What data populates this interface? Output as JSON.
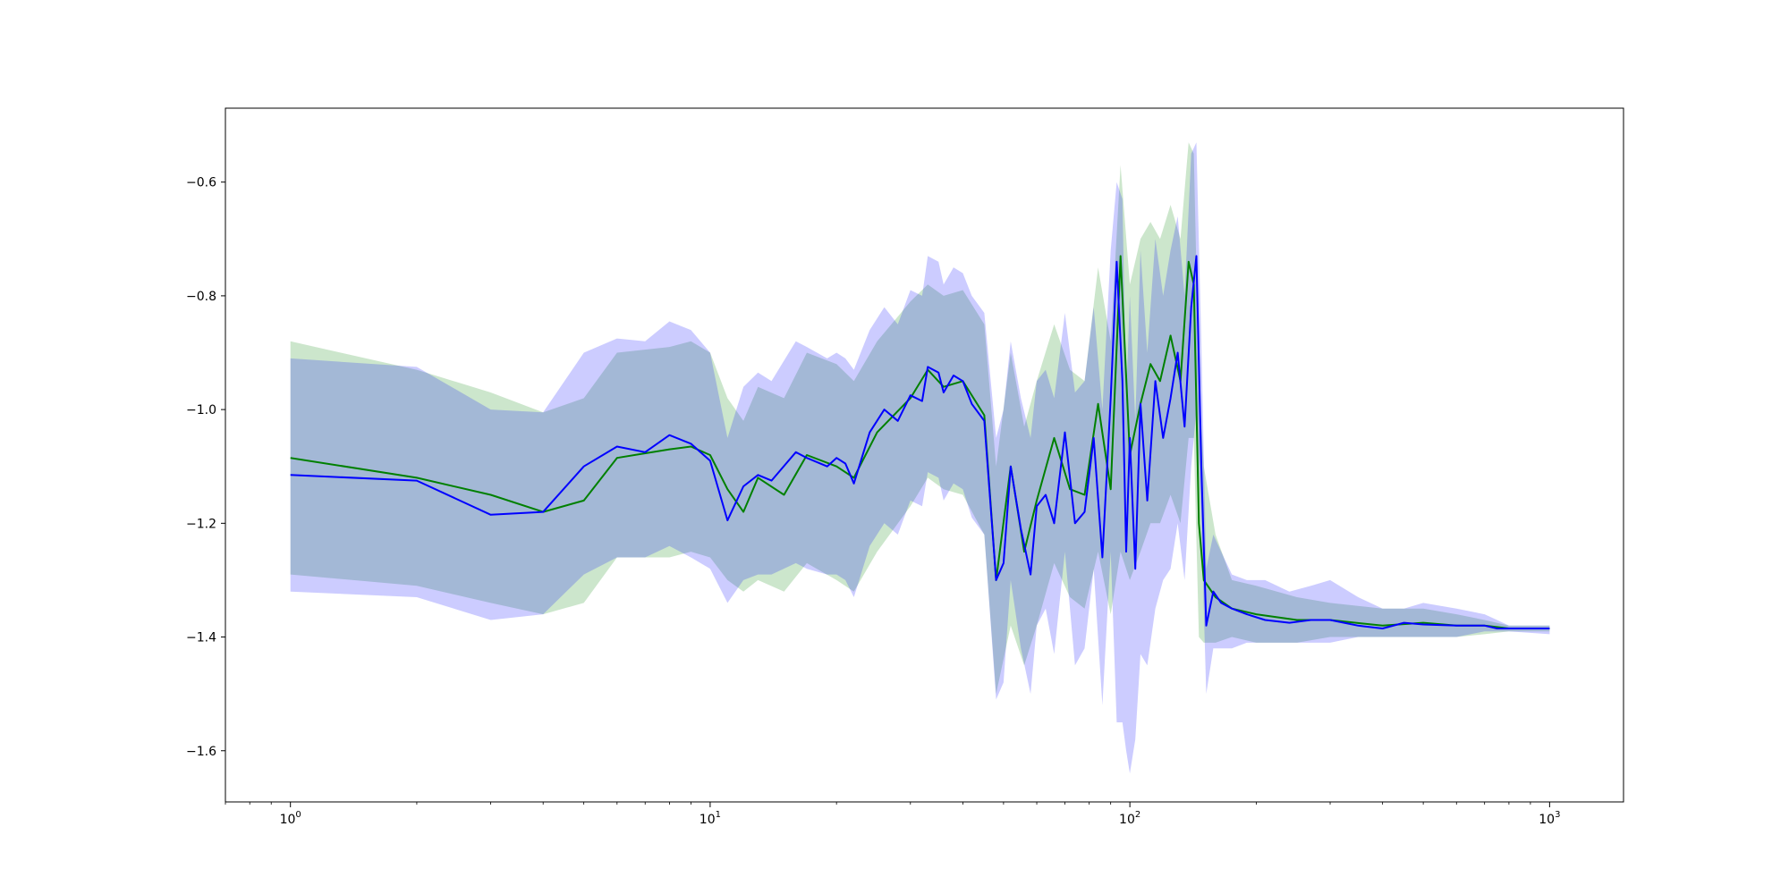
{
  "chart_data": {
    "type": "line",
    "title": "",
    "xlabel": "",
    "ylabel": "",
    "xscale": "log",
    "xlim": [
      0.7,
      1500
    ],
    "ylim": [
      -1.69,
      -0.47
    ],
    "grid": false,
    "legend": "none",
    "x_ticks": [
      {
        "base": "10",
        "exp": "0",
        "value": 1
      },
      {
        "base": "10",
        "exp": "1",
        "value": 10
      },
      {
        "base": "10",
        "exp": "2",
        "value": 100
      },
      {
        "base": "10",
        "exp": "3",
        "value": 1000
      }
    ],
    "y_ticks": [
      {
        "label": "−0.6",
        "value": -0.6
      },
      {
        "label": "−0.8",
        "value": -0.8
      },
      {
        "label": "−1.0",
        "value": -1.0
      },
      {
        "label": "−1.2",
        "value": -1.2
      },
      {
        "label": "−1.4",
        "value": -1.4
      },
      {
        "label": "−1.6",
        "value": -1.6
      }
    ],
    "colors": {
      "green_line": "#008000",
      "blue_line": "#0000ff",
      "green_band": "rgba(0,128,0,0.2)",
      "blue_band": "rgba(0,0,255,0.2)"
    },
    "series": [
      {
        "color": "green",
        "x": [
          1,
          2,
          3,
          4,
          5,
          6,
          8,
          9,
          10,
          11,
          12,
          13,
          15,
          17,
          20,
          22,
          25,
          30,
          33,
          36,
          40,
          45,
          48,
          52,
          56,
          60,
          66,
          72,
          78,
          84,
          90,
          95,
          100,
          106,
          112,
          118,
          125,
          132,
          138,
          142,
          146,
          150,
          160,
          175,
          200,
          250,
          300,
          400,
          500,
          600,
          700,
          800,
          1000
        ],
        "y": [
          -1.085,
          -1.12,
          -1.15,
          -1.18,
          -1.16,
          -1.085,
          -1.07,
          -1.065,
          -1.08,
          -1.14,
          -1.18,
          -1.12,
          -1.15,
          -1.08,
          -1.1,
          -1.12,
          -1.04,
          -0.98,
          -0.93,
          -0.96,
          -0.95,
          -1.01,
          -1.3,
          -1.1,
          -1.25,
          -1.16,
          -1.05,
          -1.14,
          -1.15,
          -0.99,
          -1.14,
          -0.73,
          -1.08,
          -0.99,
          -0.92,
          -0.95,
          -0.87,
          -0.95,
          -0.74,
          -0.78,
          -1.2,
          -1.3,
          -1.33,
          -1.35,
          -1.36,
          -1.37,
          -1.37,
          -1.38,
          -1.375,
          -1.38,
          -1.38,
          -1.385,
          -1.385
        ],
        "lower": [
          -1.29,
          -1.31,
          -1.34,
          -1.36,
          -1.34,
          -1.26,
          -1.26,
          -1.25,
          -1.26,
          -1.3,
          -1.32,
          -1.3,
          -1.32,
          -1.27,
          -1.3,
          -1.32,
          -1.25,
          -1.17,
          -1.12,
          -1.14,
          -1.15,
          -1.22,
          -1.5,
          -1.38,
          -1.45,
          -1.38,
          -1.27,
          -1.33,
          -1.35,
          -1.25,
          -1.36,
          -1.25,
          -1.3,
          -1.25,
          -1.2,
          -1.2,
          -1.15,
          -1.2,
          -1.05,
          -1.05,
          -1.4,
          -1.41,
          -1.41,
          -1.4,
          -1.41,
          -1.41,
          -1.4,
          -1.4,
          -1.4,
          -1.4,
          -1.395,
          -1.39,
          -1.39
        ],
        "upper": [
          -0.88,
          -0.93,
          -0.97,
          -1.005,
          -0.98,
          -0.9,
          -0.89,
          -0.88,
          -0.9,
          -0.98,
          -1.02,
          -0.96,
          -0.98,
          -0.9,
          -0.92,
          -0.95,
          -0.88,
          -0.81,
          -0.78,
          -0.8,
          -0.79,
          -0.85,
          -1.1,
          -0.9,
          -1.03,
          -0.95,
          -0.85,
          -0.93,
          -0.95,
          -0.75,
          -0.88,
          -0.57,
          -0.78,
          -0.7,
          -0.67,
          -0.7,
          -0.64,
          -0.7,
          -0.53,
          -0.55,
          -0.95,
          -1.1,
          -1.22,
          -1.3,
          -1.31,
          -1.33,
          -1.34,
          -1.35,
          -1.35,
          -1.36,
          -1.37,
          -1.38,
          -1.38
        ]
      },
      {
        "color": "blue",
        "x": [
          1,
          2,
          3,
          4,
          5,
          6,
          7,
          8,
          9,
          10,
          11,
          12,
          13,
          14,
          16,
          17,
          19,
          20,
          21,
          22,
          24,
          26,
          28,
          30,
          32,
          33,
          35,
          36,
          38,
          40,
          42,
          45,
          48,
          50,
          52,
          55,
          58,
          60,
          63,
          66,
          70,
          74,
          78,
          82,
          86,
          90,
          93,
          96,
          98,
          100,
          103,
          106,
          110,
          115,
          120,
          125,
          130,
          135,
          140,
          144,
          148,
          152,
          158,
          165,
          175,
          190,
          210,
          240,
          270,
          300,
          350,
          400,
          450,
          500,
          600,
          700,
          750,
          800,
          1000
        ],
        "y": [
          -1.115,
          -1.125,
          -1.185,
          -1.18,
          -1.1,
          -1.065,
          -1.075,
          -1.045,
          -1.06,
          -1.09,
          -1.195,
          -1.135,
          -1.115,
          -1.125,
          -1.075,
          -1.085,
          -1.1,
          -1.085,
          -1.095,
          -1.13,
          -1.04,
          -1.0,
          -1.02,
          -0.975,
          -0.985,
          -0.925,
          -0.935,
          -0.97,
          -0.94,
          -0.95,
          -0.99,
          -1.02,
          -1.3,
          -1.27,
          -1.1,
          -1.21,
          -1.29,
          -1.17,
          -1.15,
          -1.2,
          -1.04,
          -1.2,
          -1.18,
          -1.05,
          -1.26,
          -0.98,
          -0.74,
          -0.95,
          -1.25,
          -1.05,
          -1.28,
          -0.99,
          -1.16,
          -0.95,
          -1.05,
          -0.98,
          -0.9,
          -1.03,
          -0.82,
          -0.73,
          -1.1,
          -1.38,
          -1.32,
          -1.34,
          -1.35,
          -1.36,
          -1.37,
          -1.375,
          -1.37,
          -1.37,
          -1.38,
          -1.385,
          -1.375,
          -1.378,
          -1.38,
          -1.38,
          -1.385,
          -1.385,
          -1.385
        ],
        "lower": [
          -1.32,
          -1.33,
          -1.37,
          -1.36,
          -1.29,
          -1.26,
          -1.26,
          -1.24,
          -1.26,
          -1.28,
          -1.34,
          -1.3,
          -1.29,
          -1.29,
          -1.27,
          -1.28,
          -1.29,
          -1.29,
          -1.3,
          -1.33,
          -1.24,
          -1.2,
          -1.22,
          -1.16,
          -1.17,
          -1.11,
          -1.12,
          -1.16,
          -1.13,
          -1.14,
          -1.19,
          -1.22,
          -1.51,
          -1.48,
          -1.3,
          -1.42,
          -1.5,
          -1.38,
          -1.35,
          -1.43,
          -1.25,
          -1.45,
          -1.42,
          -1.28,
          -1.52,
          -1.25,
          -1.55,
          -1.55,
          -1.6,
          -1.64,
          -1.58,
          -1.43,
          -1.45,
          -1.35,
          -1.3,
          -1.28,
          -1.2,
          -1.3,
          -1.1,
          -1.0,
          -1.2,
          -1.5,
          -1.42,
          -1.42,
          -1.42,
          -1.41,
          -1.41,
          -1.41,
          -1.41,
          -1.41,
          -1.4,
          -1.4,
          -1.4,
          -1.4,
          -1.4,
          -1.39,
          -1.39,
          -1.39,
          -1.395
        ],
        "upper": [
          -0.91,
          -0.925,
          -1.0,
          -1.005,
          -0.9,
          -0.875,
          -0.88,
          -0.845,
          -0.86,
          -0.9,
          -1.05,
          -0.96,
          -0.935,
          -0.95,
          -0.88,
          -0.89,
          -0.91,
          -0.9,
          -0.91,
          -0.93,
          -0.86,
          -0.82,
          -0.85,
          -0.79,
          -0.8,
          -0.73,
          -0.74,
          -0.78,
          -0.75,
          -0.76,
          -0.8,
          -0.83,
          -1.05,
          -1.0,
          -0.88,
          -0.98,
          -1.05,
          -0.95,
          -0.93,
          -0.98,
          -0.83,
          -0.97,
          -0.95,
          -0.82,
          -1.0,
          -0.72,
          -0.6,
          -0.63,
          -0.98,
          -0.8,
          -1.02,
          -0.72,
          -0.9,
          -0.7,
          -0.8,
          -0.72,
          -0.66,
          -0.8,
          -0.55,
          -0.53,
          -0.88,
          -1.28,
          -1.22,
          -1.25,
          -1.29,
          -1.3,
          -1.3,
          -1.32,
          -1.31,
          -1.3,
          -1.33,
          -1.35,
          -1.35,
          -1.34,
          -1.35,
          -1.36,
          -1.37,
          -1.38,
          -1.38
        ]
      }
    ]
  }
}
